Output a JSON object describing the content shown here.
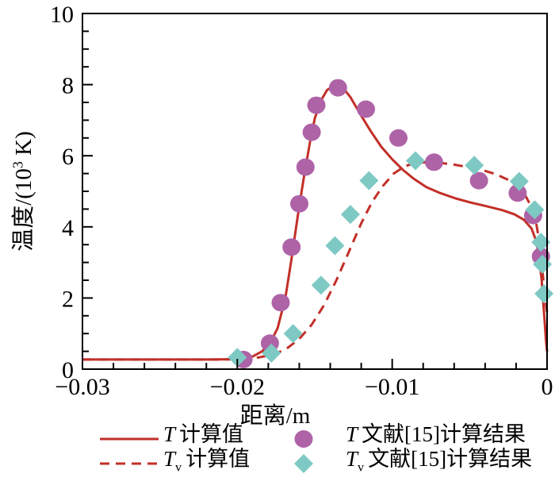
{
  "figure": {
    "background": "#ffffff",
    "axis_color": "#000000",
    "accent_red": "#c22f28",
    "accent_purple": "#ae63a7",
    "accent_teal": "#7ec9c4"
  },
  "chart_data": {
    "type": "line",
    "title": "",
    "xlabel": "距离/m",
    "ylabel": "温度/(10³ K)",
    "ylabel_parts": {
      "main": "温度/(10",
      "sup": "3",
      "tail": " K)"
    },
    "xlim": [
      -0.03,
      0
    ],
    "ylim": [
      0,
      10
    ],
    "grid": false,
    "legend_position": "bottom",
    "x_ticks": {
      "values": [
        -0.03,
        -0.02,
        -0.01,
        0
      ],
      "labels": [
        "−0.03",
        "−0.02",
        "−0.01",
        "0"
      ]
    },
    "x_minor_step": 0.002,
    "y_ticks": {
      "values": [
        0,
        2,
        4,
        6,
        8,
        10
      ],
      "labels": [
        "0",
        "2",
        "4",
        "6",
        "8",
        "10"
      ]
    },
    "y_minor_step": 0.5,
    "series": [
      {
        "id": "t-calc",
        "name": "T 计算值",
        "type": "line",
        "style": "solid",
        "color": "#c22f28",
        "width": 3,
        "z": 2,
        "points": [
          [
            -0.03,
            0.27
          ],
          [
            -0.022,
            0.27
          ],
          [
            -0.0198,
            0.28
          ],
          [
            -0.019,
            0.36
          ],
          [
            -0.0184,
            0.5
          ],
          [
            -0.0179,
            0.72
          ],
          [
            -0.0174,
            1.15
          ],
          [
            -0.0169,
            2.0
          ],
          [
            -0.0165,
            3.1
          ],
          [
            -0.0161,
            4.3
          ],
          [
            -0.0157,
            5.4
          ],
          [
            -0.0153,
            6.4
          ],
          [
            -0.015,
            7.05
          ],
          [
            -0.0146,
            7.55
          ],
          [
            -0.0142,
            7.85
          ],
          [
            -0.0137,
            7.98
          ],
          [
            -0.0132,
            7.92
          ],
          [
            -0.0127,
            7.65
          ],
          [
            -0.0121,
            7.2
          ],
          [
            -0.0114,
            6.7
          ],
          [
            -0.0107,
            6.25
          ],
          [
            -0.01,
            5.9
          ],
          [
            -0.0093,
            5.6
          ],
          [
            -0.0086,
            5.35
          ],
          [
            -0.0078,
            5.12
          ],
          [
            -0.0069,
            4.95
          ],
          [
            -0.0059,
            4.8
          ],
          [
            -0.0049,
            4.68
          ],
          [
            -0.0039,
            4.58
          ],
          [
            -0.0029,
            4.47
          ],
          [
            -0.0021,
            4.35
          ],
          [
            -0.0015,
            4.2
          ],
          [
            -0.001,
            3.95
          ],
          [
            -0.0007,
            3.6
          ],
          [
            -0.0005,
            3.1
          ],
          [
            -0.00035,
            2.5
          ],
          [
            -0.00025,
            1.9
          ],
          [
            -0.00015,
            1.3
          ],
          [
            -7e-05,
            0.8
          ],
          [
            0,
            0.5
          ]
        ]
      },
      {
        "id": "tv-calc",
        "name": "Tv 计算值",
        "type": "line",
        "style": "dashed",
        "dash": "12,8",
        "color": "#c22f28",
        "width": 3,
        "z": 1,
        "points": [
          [
            -0.03,
            0.27
          ],
          [
            -0.021,
            0.27
          ],
          [
            -0.0196,
            0.29
          ],
          [
            -0.0186,
            0.33
          ],
          [
            -0.0176,
            0.42
          ],
          [
            -0.0168,
            0.58
          ],
          [
            -0.016,
            0.85
          ],
          [
            -0.0152,
            1.25
          ],
          [
            -0.0144,
            1.8
          ],
          [
            -0.0136,
            2.5
          ],
          [
            -0.0128,
            3.3
          ],
          [
            -0.012,
            4.1
          ],
          [
            -0.0113,
            4.7
          ],
          [
            -0.0106,
            5.15
          ],
          [
            -0.0099,
            5.5
          ],
          [
            -0.0092,
            5.7
          ],
          [
            -0.0085,
            5.8
          ],
          [
            -0.0077,
            5.82
          ],
          [
            -0.0069,
            5.8
          ],
          [
            -0.006,
            5.75
          ],
          [
            -0.0051,
            5.68
          ],
          [
            -0.0042,
            5.6
          ],
          [
            -0.0033,
            5.48
          ],
          [
            -0.0025,
            5.32
          ],
          [
            -0.0019,
            5.12
          ],
          [
            -0.0014,
            4.88
          ],
          [
            -0.001,
            4.55
          ],
          [
            -0.0007,
            4.1
          ],
          [
            -0.0005,
            3.6
          ],
          [
            -0.00035,
            3.05
          ],
          [
            -0.00025,
            2.55
          ],
          [
            -0.00015,
            2.05
          ],
          [
            0,
            1.6
          ]
        ]
      },
      {
        "id": "t-ref",
        "name": "T 文献[15]计算结果",
        "type": "scatter",
        "marker": "circle",
        "color": "#ae63a7",
        "size": 11.5,
        "z": 3,
        "points": [
          [
            -0.0196,
            0.27
          ],
          [
            -0.0179,
            0.73
          ],
          [
            -0.0172,
            1.87
          ],
          [
            -0.0165,
            3.43
          ],
          [
            -0.016,
            4.65
          ],
          [
            -0.0156,
            5.68
          ],
          [
            -0.0152,
            6.66
          ],
          [
            -0.0149,
            7.42
          ],
          [
            -0.0135,
            7.91
          ],
          [
            -0.0117,
            7.31
          ],
          [
            -0.0096,
            6.5
          ],
          [
            -0.0073,
            5.82
          ],
          [
            -0.0044,
            5.3
          ],
          [
            -0.0019,
            4.95
          ],
          [
            -0.0009,
            4.32
          ],
          [
            -0.0004,
            3.17
          ]
        ]
      },
      {
        "id": "tv-ref",
        "name": "Tv 文献[15]计算结果",
        "type": "scatter",
        "marker": "diamond",
        "color": "#7ec9c4",
        "size": 12,
        "z": 4,
        "points": [
          [
            -0.02,
            0.33
          ],
          [
            -0.0178,
            0.45
          ],
          [
            -0.0164,
            1.0
          ],
          [
            -0.0146,
            2.36
          ],
          [
            -0.0137,
            3.47
          ],
          [
            -0.0127,
            4.35
          ],
          [
            -0.0115,
            5.3
          ],
          [
            -0.0085,
            5.86
          ],
          [
            -0.0047,
            5.73
          ],
          [
            -0.0018,
            5.28
          ],
          [
            -0.0008,
            4.48
          ],
          [
            -0.0004,
            3.57
          ],
          [
            -0.0003,
            2.95
          ],
          [
            -0.0002,
            2.12
          ]
        ]
      }
    ]
  },
  "legend": {
    "rows": [
      {
        "left": {
          "kind": "line-solid",
          "series": 0,
          "symbol": "T",
          "sub": "",
          "text": "计算值"
        },
        "right": {
          "kind": "circle",
          "series": 2,
          "symbol": "T",
          "sub": "",
          "text": "文献[15]计算结果"
        }
      },
      {
        "left": {
          "kind": "line-dashed",
          "series": 1,
          "symbol": "T",
          "sub": "v",
          "text": "计算值"
        },
        "right": {
          "kind": "diamond",
          "series": 3,
          "symbol": "T",
          "sub": "v",
          "text": "文献[15]计算结果"
        }
      }
    ]
  }
}
